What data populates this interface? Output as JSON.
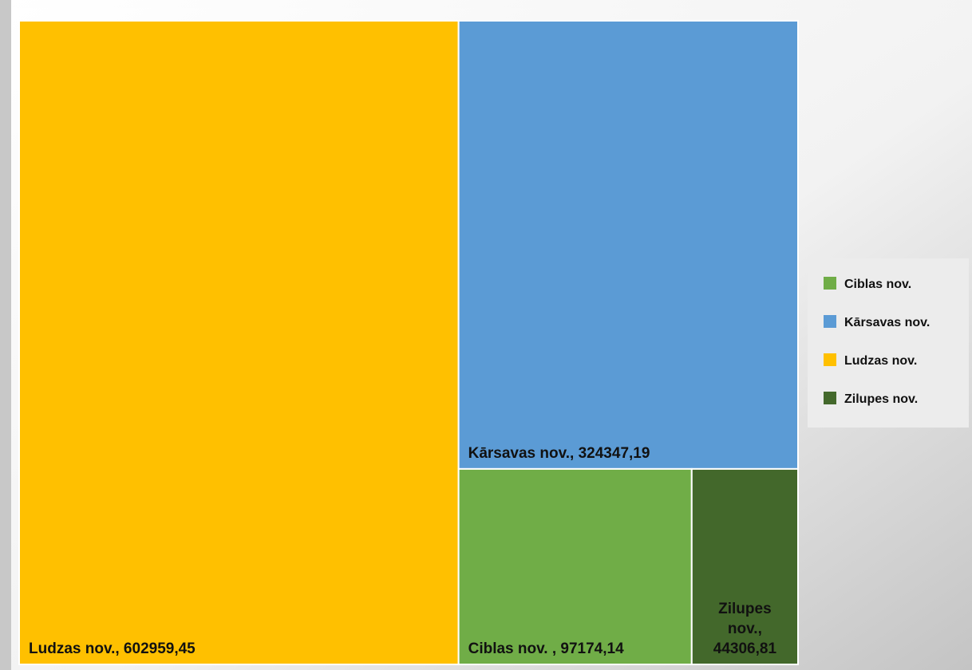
{
  "chart_data": {
    "type": "treemap",
    "categories": [
      "Ciblas nov.",
      "Kārsavas nov.",
      "Ludzas nov.",
      "Zilupes nov."
    ],
    "values": [
      97174.14,
      324347.19,
      602959.45,
      44306.81
    ],
    "value_labels": [
      "Ciblas nov. , 97174,14",
      "Kārsavas nov., 324347,19",
      "Ludzas nov., 602959,45",
      "Zilupes nov., 44306,81"
    ],
    "colors": [
      "#70ad47",
      "#5b9bd5",
      "#ffc000",
      "#43682b"
    ],
    "legend": "right"
  }
}
